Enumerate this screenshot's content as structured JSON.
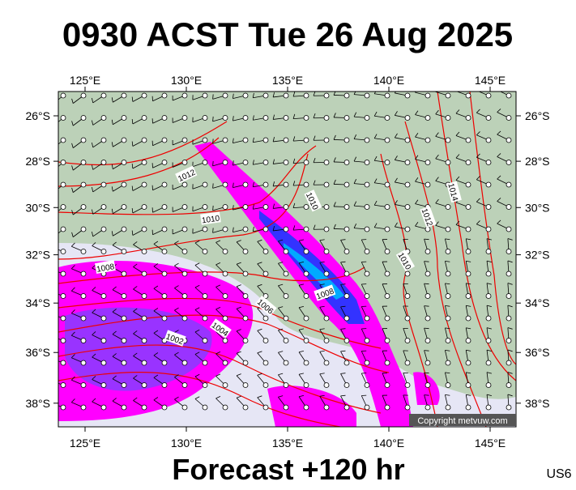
{
  "header": {
    "title": "0930 ACST Tue 26 Aug 2025"
  },
  "map": {
    "lon_ticks": [
      {
        "value": 125,
        "label": "125°E"
      },
      {
        "value": 130,
        "label": "130°E"
      },
      {
        "value": 135,
        "label": "135°E"
      },
      {
        "value": 140,
        "label": "140°E"
      },
      {
        "value": 145,
        "label": "145°E"
      }
    ],
    "lat_ticks": [
      {
        "value": -26,
        "label": "26°S"
      },
      {
        "value": -28,
        "label": "28°S"
      },
      {
        "value": -30,
        "label": "30°S"
      },
      {
        "value": -32,
        "label": "32°S"
      },
      {
        "value": -34,
        "label": "34°S"
      },
      {
        "value": -36,
        "label": "36°S"
      },
      {
        "value": -38,
        "label": "38°S"
      }
    ],
    "isobar_labels": [
      "1012",
      "1010",
      "1008",
      "1010",
      "1008",
      "1006",
      "1004",
      "1002",
      "1010",
      "1012",
      "1014"
    ],
    "copyright": "Copyright metvuw.com"
  },
  "footer": {
    "forecast": "Forecast +120 hr",
    "code": "US6"
  }
}
